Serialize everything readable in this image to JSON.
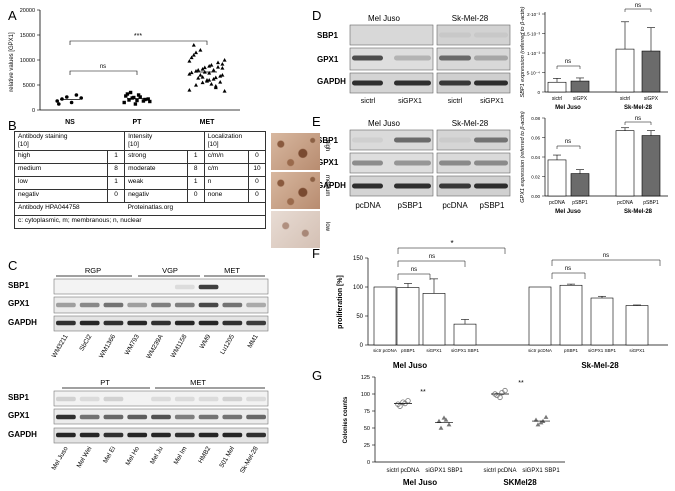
{
  "panel_labels": {
    "A": "A",
    "B": "B",
    "C": "C",
    "D": "D",
    "E": "E",
    "F": "F",
    "G": "G"
  },
  "panel_a": {
    "ylabel": "relative values [GPX1]",
    "yticks": [
      "0",
      "5000",
      "10000",
      "15000",
      "20000"
    ],
    "groups": [
      "NS",
      "PT",
      "MET"
    ],
    "sig_ns": "ns",
    "sig_met": "***"
  },
  "panel_b": {
    "headers": {
      "stain": "Antibody staining",
      "stain_n": "[10]",
      "intensity": "Intensity",
      "intensity_n": "[10]",
      "loc": "Localization",
      "loc_n": "[10]"
    },
    "rows": [
      {
        "stain": "high",
        "sn": "1",
        "int": "strong",
        "in": "1",
        "loc": "c/m/n",
        "ln": "0"
      },
      {
        "stain": "medium",
        "sn": "8",
        "int": "moderate",
        "in": "8",
        "loc": "c/m",
        "ln": "10"
      },
      {
        "stain": "low",
        "sn": "1",
        "int": "weak",
        "in": "1",
        "loc": "n",
        "ln": "0"
      },
      {
        "stain": "negativ",
        "sn": "0",
        "int": "negativ",
        "in": "0",
        "loc": "none",
        "ln": "0"
      }
    ],
    "antibody": "Antibody HPA044758",
    "source": "Proteinatlas.org",
    "legend": "c: cytoplasmic, m; membranous; n, nuclear",
    "image_labels": [
      "high",
      "medium",
      "low"
    ]
  },
  "panel_c": {
    "groups_top": [
      "RGP",
      "VGP",
      "MET"
    ],
    "rows": [
      "SBP1",
      "GPX1",
      "GAPDH"
    ],
    "lanes_top": [
      "WM3211",
      "SbCl2",
      "WM1366",
      "WM793",
      "WM239A",
      "WM1158",
      "WM9",
      "Lu1205",
      "MM1"
    ],
    "groups_bottom": [
      "PT",
      "MET"
    ],
    "lanes_bottom": [
      "Mel Juso",
      "Mel Wei",
      "Mel Ei",
      "Mel Ho",
      "Mel Ju",
      "Mel Im",
      "HMB2",
      "501 Mel",
      "Sk-Mel-28"
    ]
  },
  "panel_d": {
    "cell_lines": [
      "Mel Juso",
      "Sk-Mel-28"
    ],
    "rows": [
      "SBP1",
      "GPX1",
      "GAPDH"
    ],
    "lanes": [
      "sictrl",
      "siGPX1",
      "sictrl",
      "siGPX1"
    ],
    "chart_ylabel": "SBP1 expression (referred to β-actin)",
    "chart_yticks": [
      "0",
      "5·10⁻⁴",
      "1·10⁻³",
      "1.5·10⁻³",
      "2·10⁻³"
    ],
    "chart_x": [
      "sictrl",
      "siGPX",
      "sictrl",
      "siGPX"
    ],
    "chart_sig": [
      "ns",
      "ns"
    ]
  },
  "panel_e": {
    "cell_lines": [
      "Mel Juso",
      "Sk-Mel-28"
    ],
    "rows": [
      "SBP1",
      "GPX1",
      "GAPDH"
    ],
    "lanes": [
      "pcDNA",
      "pSBP1",
      "pcDNA",
      "pSBP1"
    ],
    "chart_ylabel": "GPX1 expression (referred to β-actin)",
    "chart_yticks": [
      "0.00",
      "0.02",
      "0.04",
      "0.06",
      "0.08"
    ],
    "chart_x": [
      "pcDNA",
      "pSBP1",
      "pcDNA",
      "pSBP1"
    ],
    "chart_sig": [
      "ns",
      "ns"
    ]
  },
  "panel_f": {
    "ylabel": "proliferation [%]",
    "yticks": [
      "0",
      "50",
      "100",
      "150"
    ],
    "x": [
      "sictr pcDNA",
      "pSBP1",
      "siGPX1",
      "siGPX1 SBP1",
      "sictr pcDNA",
      "pSBP1",
      "siGPX1 SBP1",
      "siGPX1"
    ],
    "groups": [
      "Mel Juso",
      "Sk-Mel-28"
    ],
    "sig": [
      "ns",
      "ns",
      "*",
      "ns",
      "ns"
    ]
  },
  "panel_g": {
    "ylabel": "Colonies counts",
    "yticks": [
      "0",
      "25",
      "50",
      "75",
      "100",
      "125"
    ],
    "x": [
      "sictrl pcDNA",
      "siGPX1 SBP1",
      "sictrl pcDNA",
      "siGPX1 SBP1"
    ],
    "groups": [
      "Mel Juso",
      "SKMel28"
    ],
    "sig": [
      "**",
      "**"
    ]
  },
  "chart_data": [
    {
      "type": "scatter",
      "panel": "A",
      "categories": [
        "NS",
        "PT",
        "MET"
      ],
      "ylabel": "relative values [GPX1]",
      "ylim": [
        0,
        20000
      ],
      "series": [
        {
          "values": [
            [
              1800,
              2200,
              2600,
              1500,
              3000,
              2400,
              1200
            ],
            [
              1500,
              2000,
              2500,
              3000,
              1800,
              2200,
              2800,
              3500,
              1200,
              2600,
              2100,
              1700,
              3200,
              2400,
              1900
            ],
            [
              4000,
              5000,
              5500,
              6000,
              6500,
              7000,
              7500,
              8000,
              8500,
              9000,
              9500,
              10000,
              11000,
              12000,
              5800,
              6200,
              6800,
              7200,
              7800,
              8200,
              8800,
              4500,
              9200,
              10500,
              6400,
              7600,
              5200,
              8600,
              3800,
              13000,
              7000,
              6000,
              8000,
              5600,
              9800,
              11500,
              6600,
              7400,
              4800,
              8400
            ]
          ]
        }
      ]
    },
    {
      "type": "bar",
      "panel": "D",
      "categories": [
        "sictrl",
        "siGPX",
        "sictrl",
        "siGPX"
      ],
      "ylabel": "SBP1 expression (referred to β-actin)",
      "ylim": [
        0,
        0.002
      ],
      "values": [
        0.00025,
        0.00028,
        0.0011,
        0.00105
      ],
      "errors": [
        0.0001,
        8e-05,
        0.0007,
        0.0006
      ]
    },
    {
      "type": "bar",
      "panel": "E",
      "categories": [
        "pcDNA",
        "pSBP1",
        "pcDNA",
        "pSBP1"
      ],
      "ylabel": "GPX1 expression (referred to β-actin)",
      "ylim": [
        0,
        0.08
      ],
      "values": [
        0.037,
        0.023,
        0.067,
        0.062
      ],
      "errors": [
        0.005,
        0.004,
        0.003,
        0.005
      ]
    },
    {
      "type": "bar",
      "panel": "F",
      "categories": [
        "sictr pcDNA",
        "pSBP1",
        "siGPX1",
        "siGPX1 SBP1",
        "sictr pcDNA",
        "pSBP1",
        "siGPX1 SBP1",
        "siGPX1"
      ],
      "ylabel": "proliferation [%]",
      "ylim": [
        0,
        150
      ],
      "values": [
        100,
        99,
        89,
        36,
        100,
        103,
        81,
        68
      ],
      "errors": [
        0,
        7,
        25,
        8,
        0,
        2,
        3,
        1
      ]
    },
    {
      "type": "scatter",
      "panel": "G",
      "categories": [
        "sictrl pcDNA",
        "siGPX1 SBP1",
        "sictrl pcDNA",
        "siGPX1 SBP1"
      ],
      "ylabel": "Colonies counts",
      "ylim": [
        0,
        125
      ],
      "series": [
        {
          "values": [
            [
              85,
              88,
              90,
              82,
              86
            ],
            [
              60,
              65,
              55,
              50,
              62
            ],
            [
              100,
              95,
              105,
              98,
              102
            ],
            [
              62,
              58,
              66,
              55,
              60
            ]
          ]
        }
      ]
    }
  ]
}
